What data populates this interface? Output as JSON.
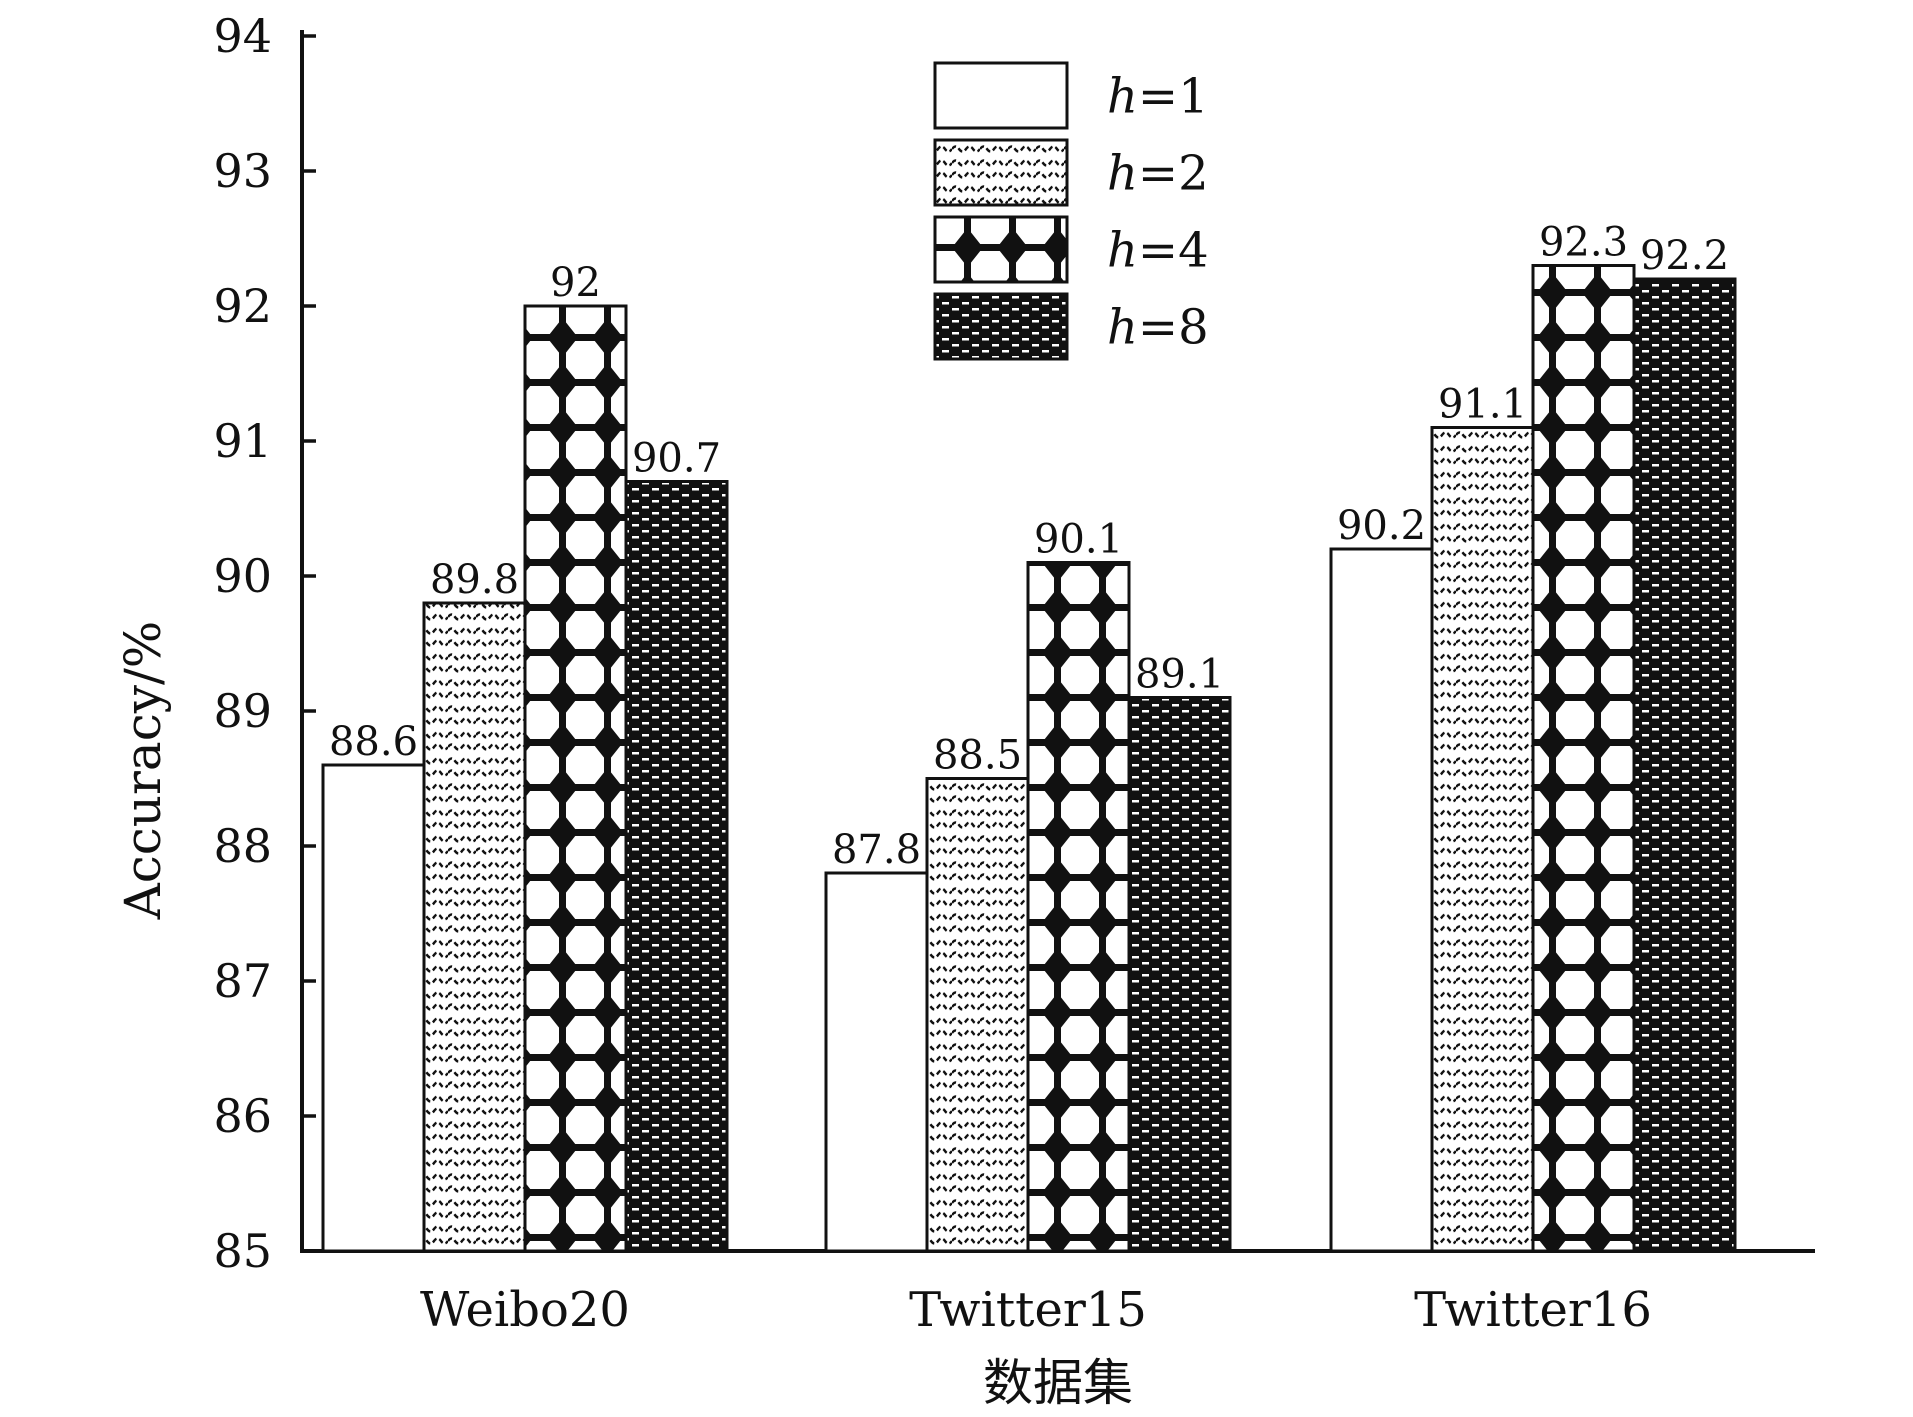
{
  "chart_data": {
    "type": "bar",
    "title": "",
    "xlabel": "数据集",
    "ylabel": "Accuracy/%",
    "ylim": [
      85,
      94
    ],
    "yticks": [
      85,
      86,
      87,
      88,
      89,
      90,
      91,
      92,
      93,
      94
    ],
    "categories": [
      "Weibo20",
      "Twitter15",
      "Twitter16"
    ],
    "series": [
      {
        "name": "h=1",
        "italic_var": "h",
        "suffix": "=1",
        "pattern": "white",
        "values": [
          88.6,
          87.8,
          90.2
        ]
      },
      {
        "name": "h=2",
        "italic_var": "h",
        "suffix": "=2",
        "pattern": "waves",
        "values": [
          89.8,
          88.5,
          91.1
        ]
      },
      {
        "name": "h=4",
        "italic_var": "h",
        "suffix": "=4",
        "pattern": "diamonds",
        "values": [
          92.0,
          90.1,
          92.3
        ]
      },
      {
        "name": "h=8",
        "italic_var": "h",
        "suffix": "=8",
        "pattern": "dense",
        "values": [
          90.7,
          89.1,
          92.2
        ]
      }
    ],
    "data_labels": [
      [
        "88.6",
        "87.8",
        "90.2"
      ],
      [
        "89.8",
        "88.5",
        "91.1"
      ],
      [
        "92",
        "90.1",
        "92.3"
      ],
      [
        "90.7",
        "89.1",
        "92.2"
      ]
    ],
    "grid": false,
    "legend_position": "top-center"
  }
}
